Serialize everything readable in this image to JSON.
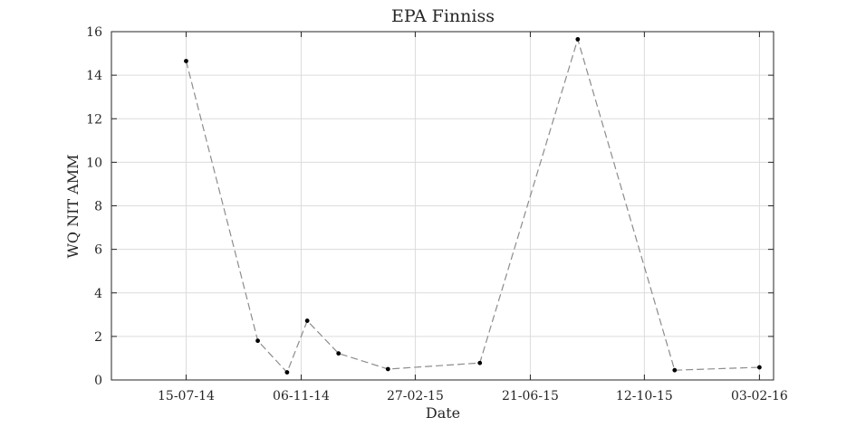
{
  "chart_data": {
    "type": "line",
    "title": "EPA Finniss",
    "xlabel": "Date",
    "ylabel": "WQ NIT AMM",
    "ylim": [
      0,
      16
    ],
    "xlim": [
      "2014-05-02",
      "2016-02-17"
    ],
    "y_ticks": [
      0,
      2,
      4,
      6,
      8,
      10,
      12,
      14,
      16
    ],
    "x_ticks": [
      {
        "date": "2014-07-15",
        "label": "15-07-14"
      },
      {
        "date": "2014-11-06",
        "label": "06-11-14"
      },
      {
        "date": "2015-02-27",
        "label": "27-02-15"
      },
      {
        "date": "2015-06-21",
        "label": "21-06-15"
      },
      {
        "date": "2015-10-12",
        "label": "12-10-15"
      },
      {
        "date": "2016-02-03",
        "label": "03-02-16"
      }
    ],
    "grid": true,
    "series": [
      {
        "x": [
          "2014-07-15",
          "2014-09-24",
          "2014-10-23",
          "2014-11-12",
          "2014-12-13",
          "2015-01-31",
          "2015-05-02",
          "2015-08-07",
          "2015-11-11",
          "2016-02-03"
        ],
        "y": [
          14.65,
          1.8,
          0.35,
          2.72,
          1.22,
          0.5,
          0.78,
          15.65,
          0.45,
          0.58
        ]
      }
    ],
    "colors": {
      "line": "#8c8c8c",
      "marker": "#000000",
      "grid": "#dcdcdc",
      "axis": "#262626"
    }
  }
}
